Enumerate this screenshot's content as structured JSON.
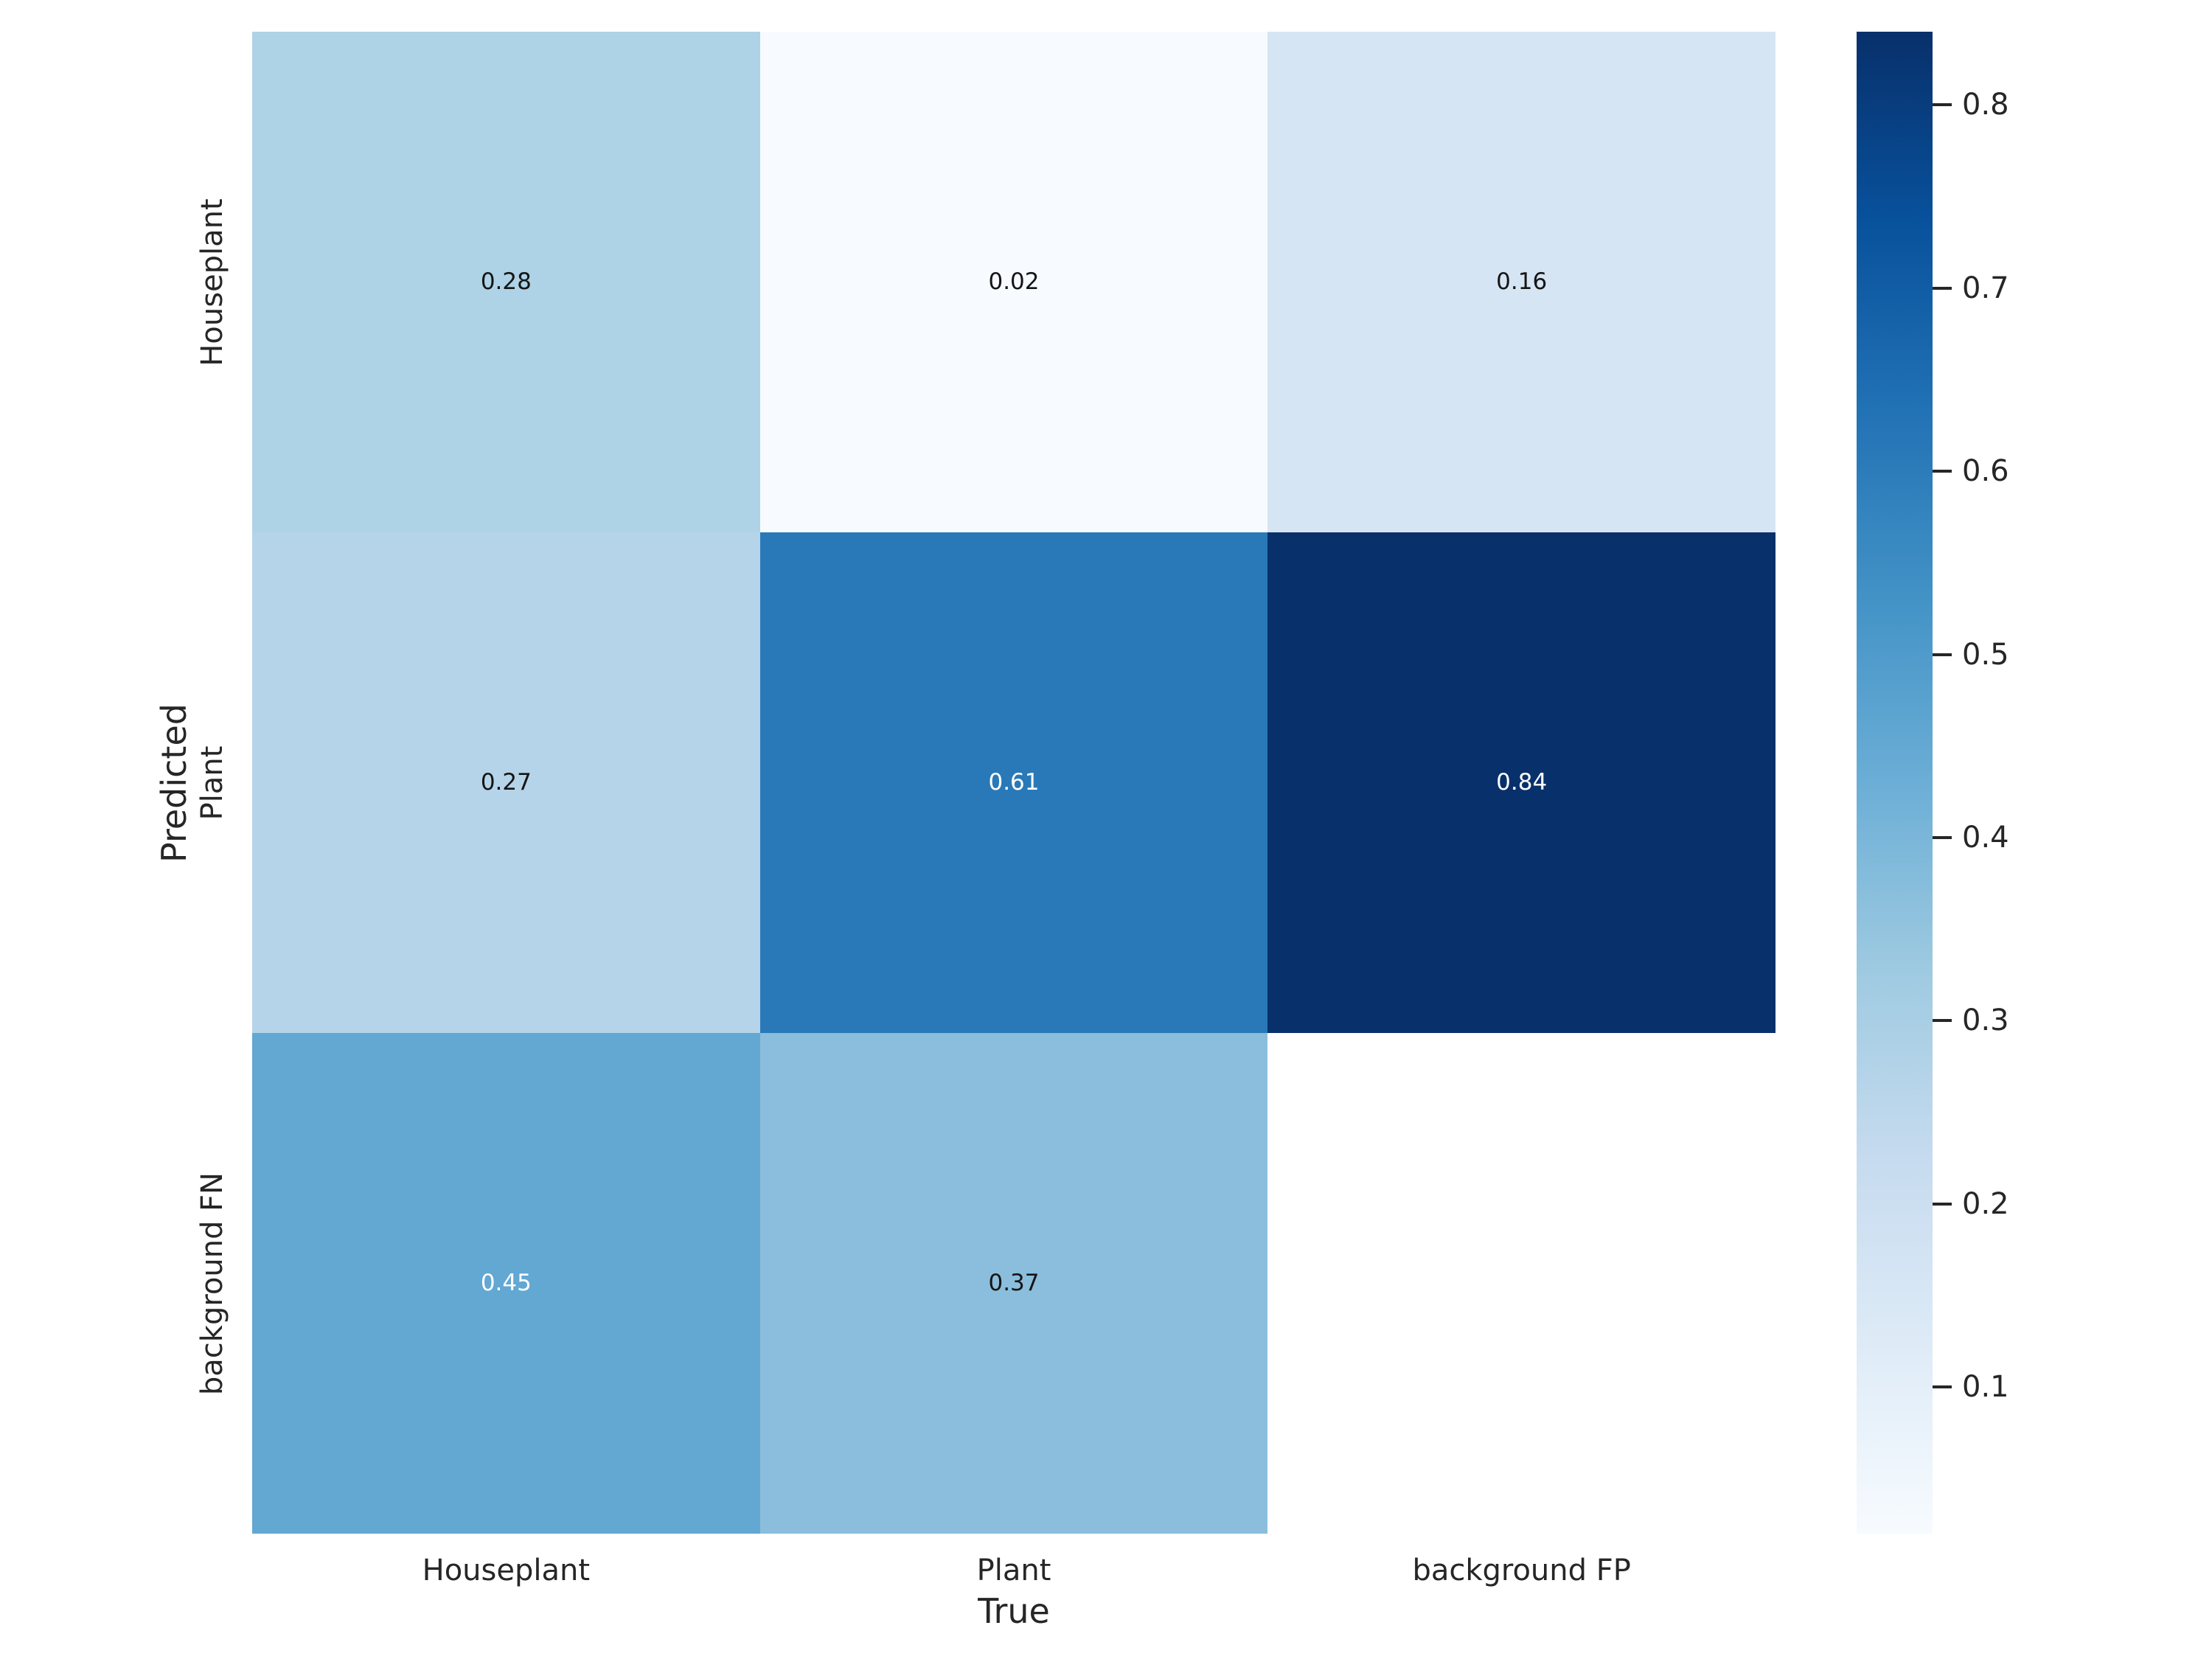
{
  "figure": {
    "background_color": "#ffffff",
    "text_color": "#262626"
  },
  "chart_data": {
    "type": "heatmap",
    "title": "",
    "xlabel": "True",
    "ylabel": "Predicted",
    "x_tick_labels": [
      "Houseplant",
      "Plant",
      "background FP"
    ],
    "y_tick_labels": [
      "Houseplant",
      "Plant",
      "background FN"
    ],
    "rows": [
      "Houseplant",
      "Plant",
      "background FN"
    ],
    "columns": [
      "Houseplant",
      "Plant",
      "background FP"
    ],
    "values": [
      [
        0.28,
        0.02,
        0.16
      ],
      [
        0.27,
        0.61,
        0.84
      ],
      [
        0.45,
        0.37,
        null
      ]
    ],
    "cell_labels": [
      [
        "0.28",
        "0.02",
        "0.16"
      ],
      [
        "0.27",
        "0.61",
        "0.84"
      ],
      [
        "0.45",
        "0.37",
        ""
      ]
    ],
    "cell_colors": [
      [
        "#aed2e6",
        "#f7fbff",
        "#d6e5f4"
      ],
      [
        "#b5d4e9",
        "#2979b9",
        "#08306b"
      ],
      [
        "#62a8d2",
        "#8abedc",
        null
      ]
    ],
    "cell_text_colors": [
      [
        "#151515",
        "#151515",
        "#151515"
      ],
      [
        "#151515",
        "#ffffff",
        "#ffffff"
      ],
      [
        "#ffffff",
        "#151515",
        null
      ]
    ],
    "colormap": "Blues",
    "vmin": 0.02,
    "vmax": 0.84,
    "grid": false,
    "legend_position": "right-colorbar",
    "colorbar": {
      "tick_values": [
        0.8,
        0.7,
        0.6,
        0.5,
        0.4,
        0.3,
        0.2,
        0.1
      ],
      "tick_labels": [
        "0.8",
        "0.7",
        "0.6",
        "0.5",
        "0.4",
        "0.3",
        "0.2",
        "0.1"
      ],
      "gradient_top_to_bottom": [
        "#08306b",
        "#08519c",
        "#2171b5",
        "#4292c6",
        "#6baed6",
        "#9ecae1",
        "#c6dbef",
        "#deebf7",
        "#f7fbff"
      ]
    }
  }
}
